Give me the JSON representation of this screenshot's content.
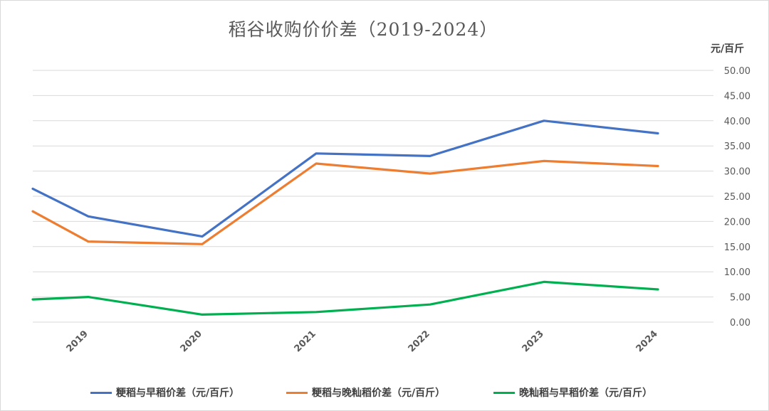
{
  "chart_data": {
    "type": "line",
    "title": "稻谷收购价价差（2019-2024）",
    "ylabel": "元/百斤",
    "categories": [
      "2019",
      "2020",
      "2021",
      "2022",
      "2023",
      "2024"
    ],
    "x": [
      2018.5,
      2019,
      2020,
      2021,
      2022,
      2023,
      2024
    ],
    "ylim": [
      0,
      50
    ],
    "yticks": [
      "0.00",
      "5.00",
      "10.00",
      "15.00",
      "20.00",
      "25.00",
      "30.00",
      "35.00",
      "40.00",
      "45.00",
      "50.00"
    ],
    "grid": true,
    "legend_position": "bottom",
    "series": [
      {
        "name": "粳稻与早稻价差（元/百斤）",
        "color": "#4472C4",
        "values": [
          26.5,
          21.0,
          17.0,
          33.5,
          33.0,
          40.0,
          37.5
        ]
      },
      {
        "name": "粳稻与晚籼稻价差（元/百斤）",
        "color": "#ED7D31",
        "values": [
          22.0,
          16.0,
          15.5,
          31.5,
          29.5,
          32.0,
          31.0
        ]
      },
      {
        "name": "晚籼稻与早稻价差（元/百斤）",
        "color": "#00B050",
        "values": [
          4.5,
          5.0,
          1.5,
          2.0,
          3.5,
          8.0,
          6.5
        ]
      }
    ]
  }
}
